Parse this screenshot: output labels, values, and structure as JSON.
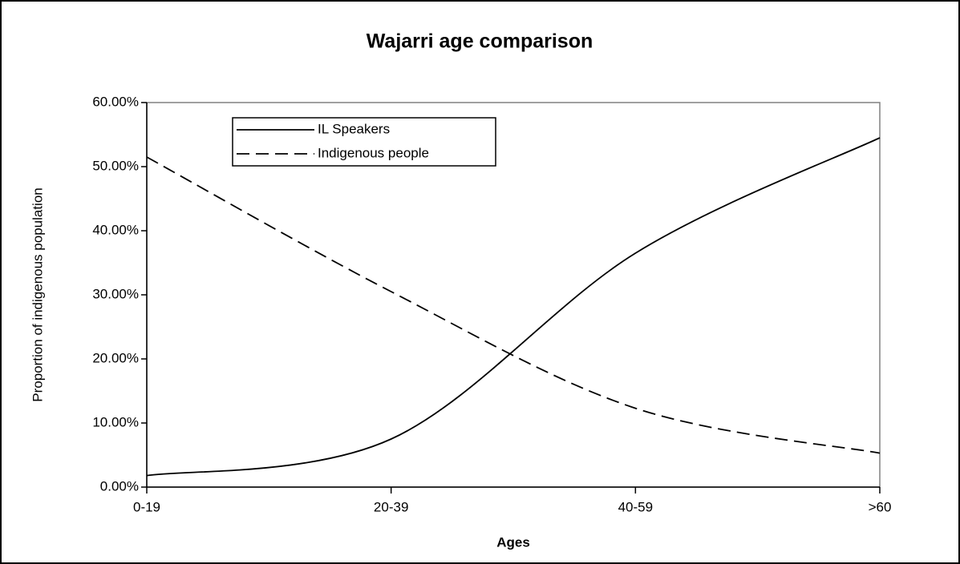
{
  "chart_data": {
    "type": "line",
    "title": "Wajarri age comparison",
    "x_label": "Ages",
    "y_label": "Proportion of indigenous population",
    "categories": [
      "0-19",
      "20-39",
      "40-59",
      ">60"
    ],
    "series": [
      {
        "name": "IL Speakers",
        "color": "#000000",
        "line_style": "solid",
        "values": [
          1.8,
          7.5,
          36.5,
          54.5
        ]
      },
      {
        "name": "Indigenous people",
        "color": "#000000",
        "line_style": "dashed",
        "values": [
          51.5,
          30.5,
          12.3,
          5.3
        ]
      }
    ],
    "ylim": [
      0,
      60
    ],
    "yticks": [
      {
        "value": 0,
        "label": "0.00%"
      },
      {
        "value": 10,
        "label": "10.00%"
      },
      {
        "value": 20,
        "label": "20.00%"
      },
      {
        "value": 30,
        "label": "30.00%"
      },
      {
        "value": 40,
        "label": "40.00%"
      },
      {
        "value": 50,
        "label": "50.00%"
      },
      {
        "value": 60,
        "label": "60.00%"
      }
    ],
    "smooth": true,
    "grid": false,
    "legend": "upper left"
  }
}
